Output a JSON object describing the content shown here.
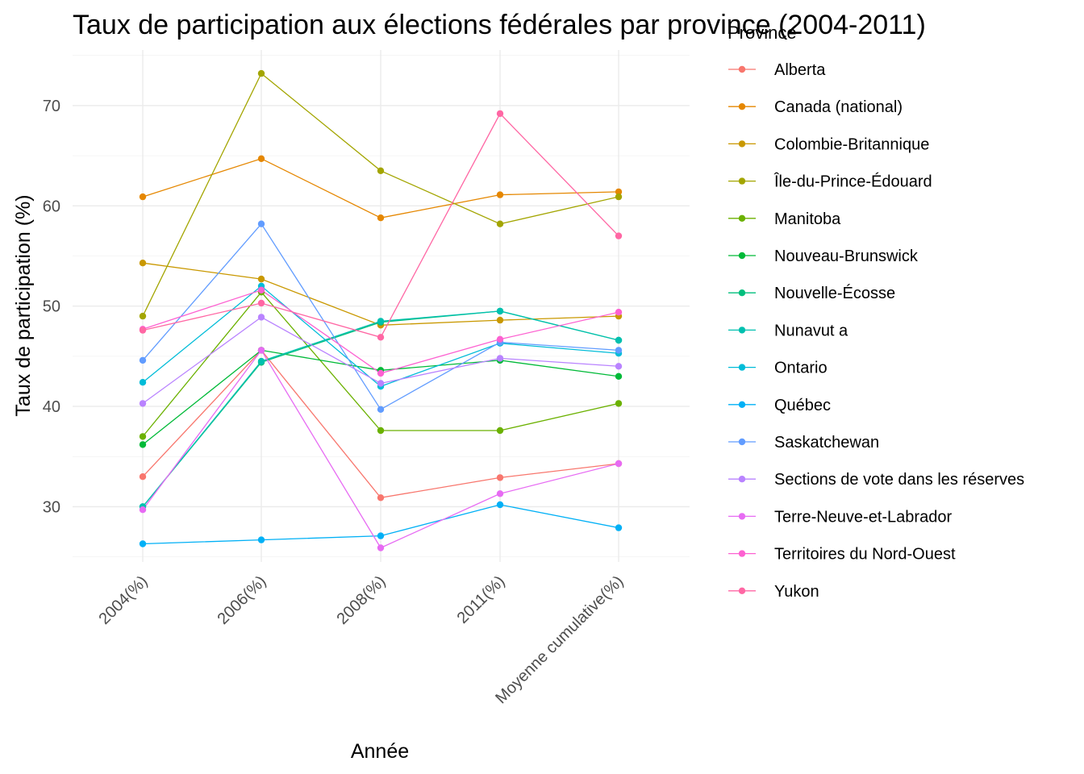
{
  "chart_data": {
    "type": "line",
    "title": "Taux de participation aux élections fédérales par province (2004-2011)",
    "xlabel": "Année",
    "ylabel": "Taux de participation (%)",
    "categories": [
      "2004(%)",
      "2006(%)",
      "2008(%)",
      "2011(%)",
      "Moyenne cumulative(%)"
    ],
    "ylim": [
      24.5,
      75.5
    ],
    "yticks": [
      30,
      40,
      50,
      60,
      70
    ],
    "grid": true,
    "legend_title": "Province",
    "legend_position": "right",
    "series": [
      {
        "name": "Alberta",
        "color": "#F8766D",
        "values": [
          33.0,
          45.6,
          30.9,
          32.9,
          34.3
        ]
      },
      {
        "name": "Canada (national)",
        "color": "#E58700",
        "values": [
          60.9,
          64.7,
          58.8,
          61.1,
          61.4
        ]
      },
      {
        "name": "Colombie-Britannique",
        "color": "#C99800",
        "values": [
          54.3,
          52.7,
          48.1,
          48.6,
          49.0
        ]
      },
      {
        "name": "Île-du-Prince-Édouard",
        "color": "#A3A500",
        "values": [
          49.0,
          73.2,
          63.5,
          58.2,
          60.9
        ]
      },
      {
        "name": "Manitoba",
        "color": "#6BB100",
        "values": [
          37.0,
          51.4,
          37.6,
          37.6,
          40.3
        ]
      },
      {
        "name": "Nouveau-Brunswick",
        "color": "#00BA38",
        "values": [
          36.2,
          45.6,
          43.6,
          44.6,
          43.0
        ]
      },
      {
        "name": "Nouvelle-Écosse",
        "color": "#00BF7D",
        "values": [
          30.0,
          44.4,
          48.4,
          49.5,
          46.6
        ]
      },
      {
        "name": "Nunavut a",
        "color": "#00C0AF",
        "values": [
          30.0,
          44.5,
          48.5,
          49.5,
          46.6
        ]
      },
      {
        "name": "Ontario",
        "color": "#00BCD8",
        "values": [
          42.4,
          52.0,
          42.0,
          46.3,
          45.3
        ]
      },
      {
        "name": "Québec",
        "color": "#00B0F6",
        "values": [
          26.3,
          26.7,
          27.1,
          30.2,
          27.9
        ]
      },
      {
        "name": "Saskatchewan",
        "color": "#619CFF",
        "values": [
          44.6,
          58.2,
          39.7,
          46.4,
          45.6
        ]
      },
      {
        "name": "Sections de vote dans les réserves",
        "color": "#B983FF",
        "values": [
          40.3,
          48.9,
          42.3,
          44.8,
          44.0
        ]
      },
      {
        "name": "Terre-Neuve-et-Labrador",
        "color": "#E76BF3",
        "values": [
          29.7,
          45.6,
          25.9,
          31.3,
          34.3
        ]
      },
      {
        "name": "Territoires du Nord-Ouest",
        "color": "#FD61D1",
        "values": [
          47.7,
          51.6,
          43.3,
          46.7,
          49.4
        ]
      },
      {
        "name": "Yukon",
        "color": "#FF67A4",
        "values": [
          47.6,
          50.3,
          46.9,
          69.2,
          57.0
        ]
      }
    ]
  }
}
